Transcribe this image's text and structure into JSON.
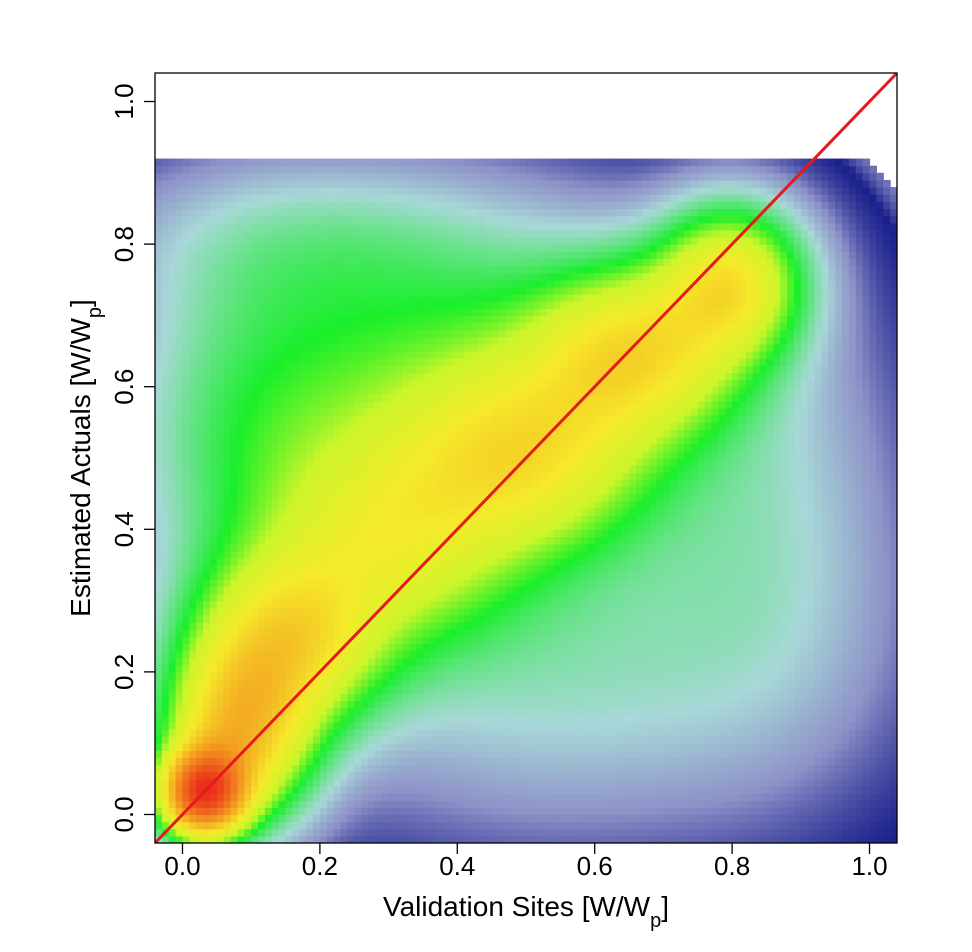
{
  "chart_data": {
    "type": "heatmap",
    "subtype": "2d-density",
    "title": "",
    "xlabel": {
      "main": "Validation Sites [W/W",
      "sub": "p",
      "close": "]"
    },
    "ylabel": {
      "main": "Estimated Actuals [W/W",
      "sub": "p",
      "close": "]"
    },
    "xlim": [
      -0.04,
      1.04
    ],
    "ylim": [
      -0.04,
      1.04
    ],
    "x_ticks": [
      {
        "value": 0.0,
        "label": "0.0"
      },
      {
        "value": 0.2,
        "label": "0.2"
      },
      {
        "value": 0.4,
        "label": "0.4"
      },
      {
        "value": 0.6,
        "label": "0.6"
      },
      {
        "value": 0.8,
        "label": "0.8"
      },
      {
        "value": 1.0,
        "label": "1.0"
      }
    ],
    "y_ticks": [
      {
        "value": 0.0,
        "label": "0.0"
      },
      {
        "value": 0.2,
        "label": "0.2"
      },
      {
        "value": 0.4,
        "label": "0.4"
      },
      {
        "value": 0.6,
        "label": "0.6"
      },
      {
        "value": 0.8,
        "label": "0.8"
      },
      {
        "value": 1.0,
        "label": "1.0"
      }
    ],
    "grid": false,
    "density_extent": {
      "x": [
        -0.04,
        1.04
      ],
      "y": [
        -0.04,
        0.92
      ]
    },
    "color_scale": [
      "#ffffff",
      "#1a1f8c",
      "#8e92c8",
      "#a8d8d8",
      "#19ef2a",
      "#ccf52a",
      "#f5ea2a",
      "#f39a20",
      "#ea2a1a"
    ],
    "density_components": [
      {
        "x": 0.03,
        "y": 0.03,
        "sx": 0.04,
        "sy": 0.04,
        "w": 1.0
      },
      {
        "x": 0.08,
        "y": 0.11,
        "sx": 0.07,
        "sy": 0.08,
        "w": 0.55
      },
      {
        "x": 0.15,
        "y": 0.24,
        "sx": 0.09,
        "sy": 0.08,
        "w": 0.42
      },
      {
        "x": 0.3,
        "y": 0.38,
        "sx": 0.12,
        "sy": 0.1,
        "w": 0.3
      },
      {
        "x": 0.5,
        "y": 0.5,
        "sx": 0.12,
        "sy": 0.09,
        "w": 0.32
      },
      {
        "x": 0.66,
        "y": 0.65,
        "sx": 0.1,
        "sy": 0.08,
        "w": 0.4
      },
      {
        "x": 0.8,
        "y": 0.75,
        "sx": 0.07,
        "sy": 0.07,
        "w": 0.42
      },
      {
        "x": 0.4,
        "y": 0.6,
        "sx": 0.22,
        "sy": 0.14,
        "w": 0.22
      },
      {
        "x": 0.1,
        "y": 0.5,
        "sx": 0.12,
        "sy": 0.18,
        "w": 0.12
      },
      {
        "x": 0.55,
        "y": 0.22,
        "sx": 0.25,
        "sy": 0.15,
        "w": 0.1
      },
      {
        "x": 0.85,
        "y": 0.42,
        "sx": 0.12,
        "sy": 0.2,
        "w": 0.07
      },
      {
        "x": 0.2,
        "y": 0.8,
        "sx": 0.2,
        "sy": 0.08,
        "w": 0.08
      }
    ],
    "series": [
      {
        "type": "line",
        "color": "#e41a1c",
        "x": [
          -0.04,
          1.04
        ],
        "y": [
          -0.04,
          1.04
        ]
      }
    ]
  }
}
